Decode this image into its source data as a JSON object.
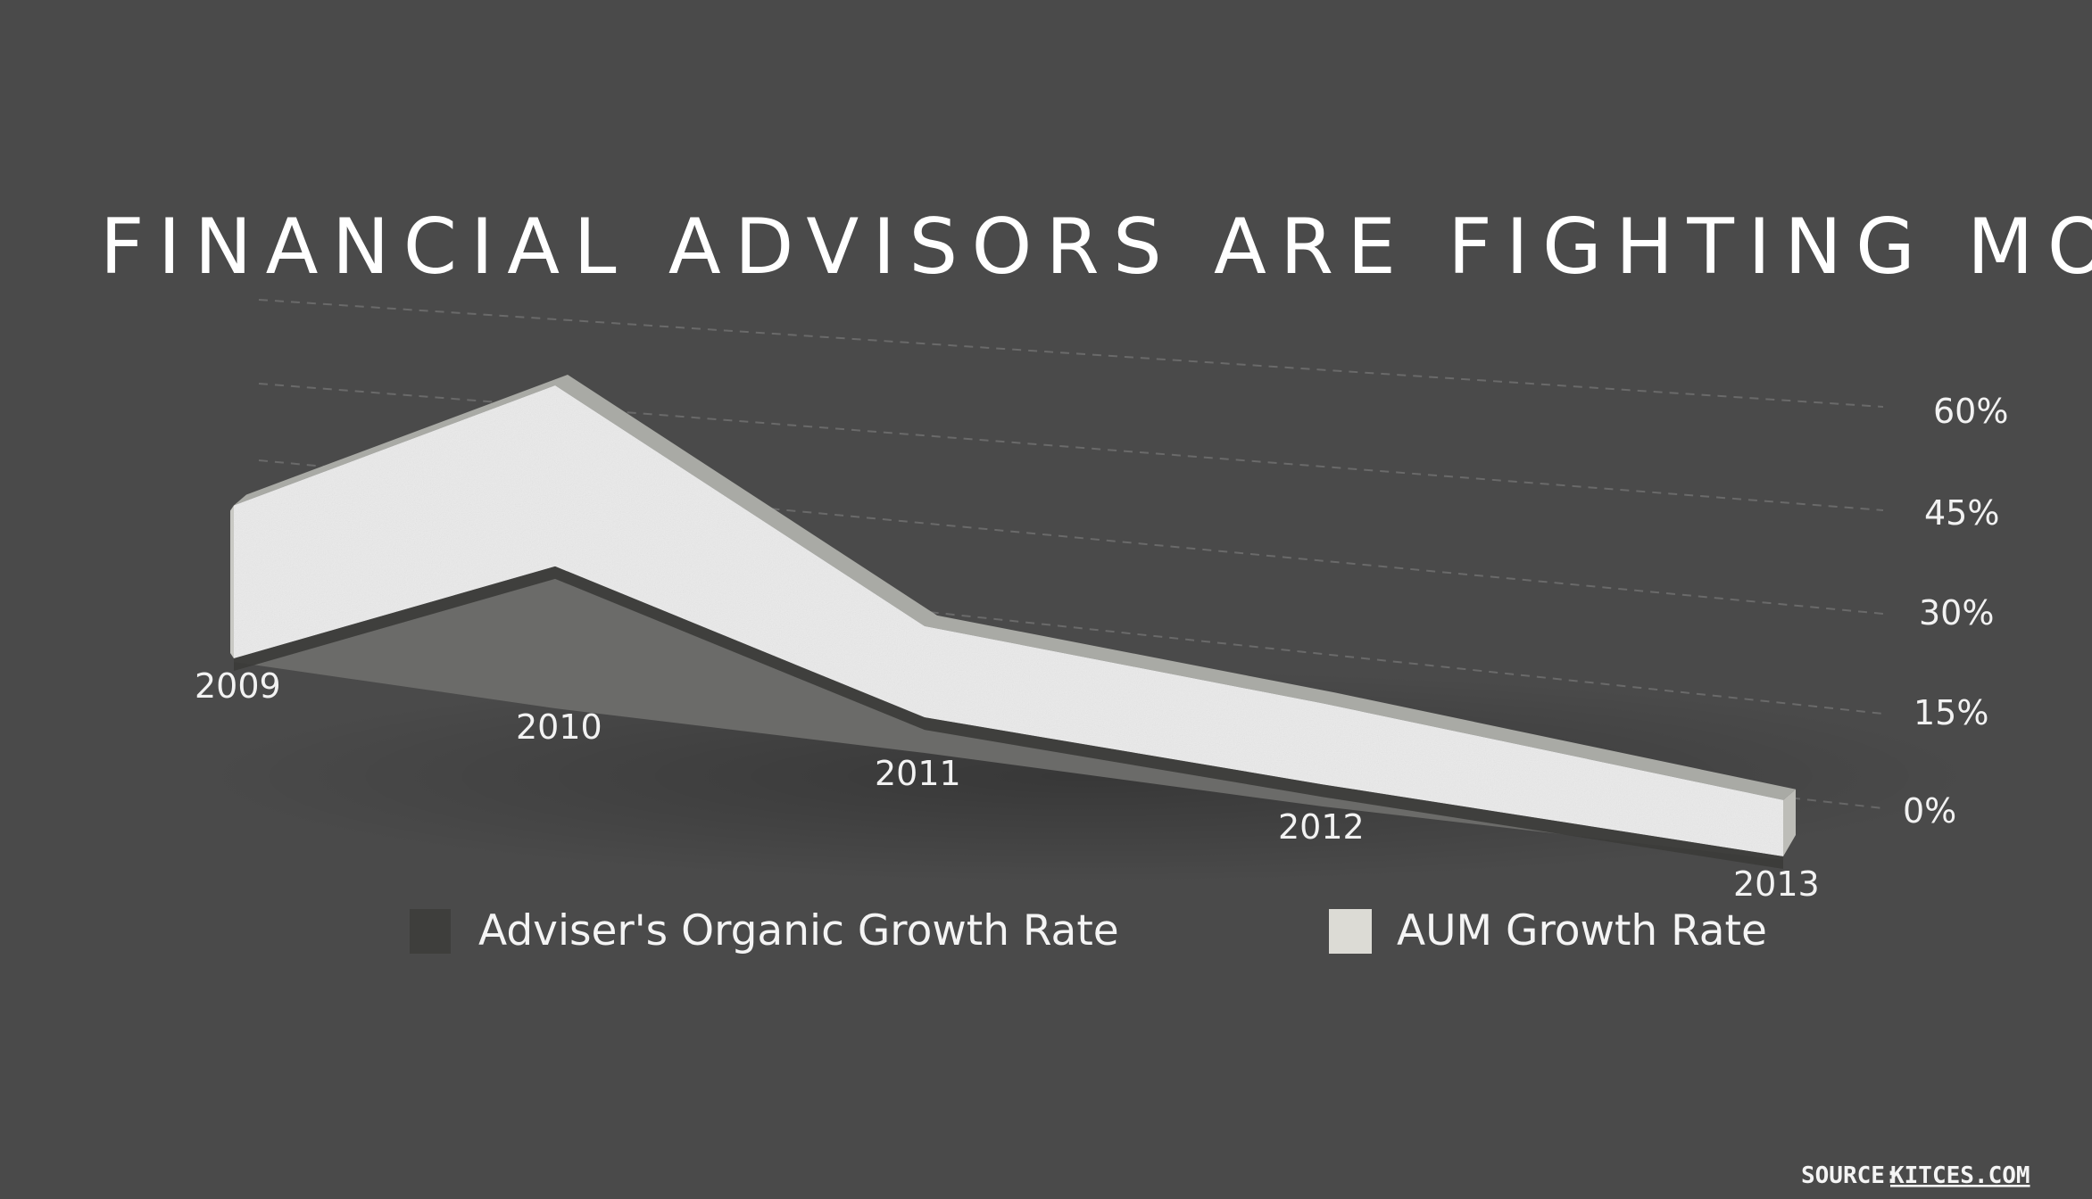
{
  "chart_data": {
    "type": "area",
    "title": "FINANCIAL ADVISORS ARE FIGHTING MORE FOR LESS",
    "categories": [
      "2009",
      "2010",
      "2011",
      "2012",
      "2013"
    ],
    "series": [
      {
        "name": "Adviser's Organic Growth Rate",
        "values": [
          0,
          0.26,
          0.07,
          0.05,
          0
        ],
        "color": "#3e3e3c"
      },
      {
        "name": "AUM Growth Rate",
        "values": [
          0.27,
          0.6,
          0.27,
          0.27,
          0.24
        ],
        "color": "#dcdbd5"
      }
    ],
    "y_ticks": [
      "0%",
      "15%",
      "30%",
      "45%",
      "60%"
    ],
    "ylim": [
      0,
      0.6
    ],
    "grid": true,
    "legend_placement": "bottom"
  },
  "source": {
    "label": "SOURCE:",
    "link_text": "KITCES.COM"
  },
  "colors": {
    "background": "#4a4a4a",
    "aum_face": "#ebebeb",
    "aum_top": "#a9aaa5",
    "organic_face": "#6b6b69",
    "organic_top": "#3b3b39",
    "grid": "#6a6a6a"
  }
}
